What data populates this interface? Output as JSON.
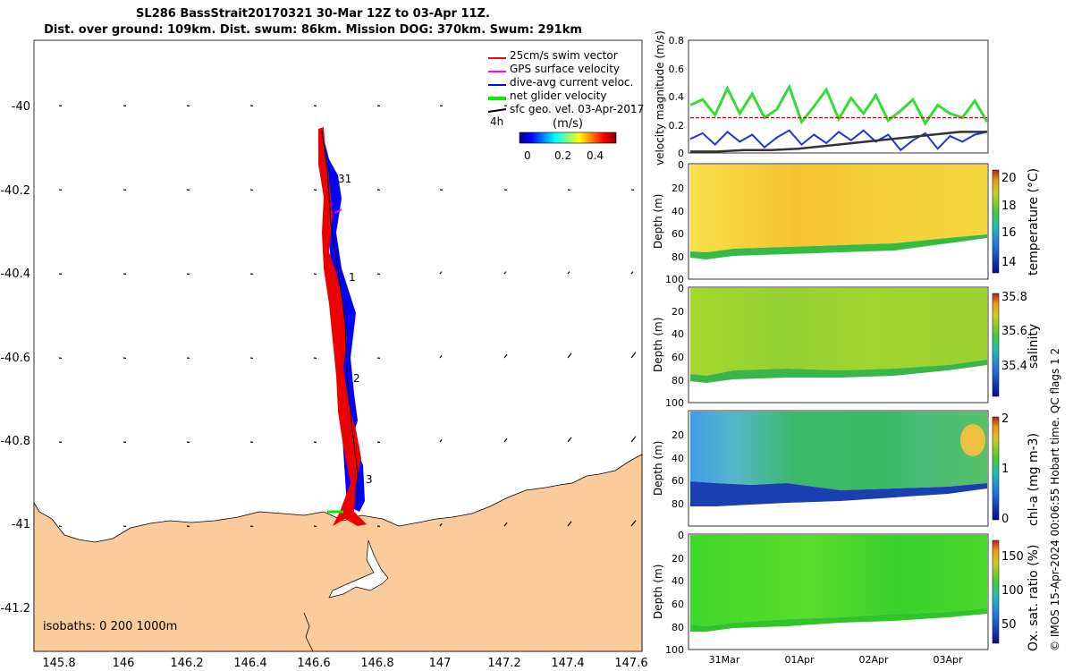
{
  "titles": {
    "line1": "SL286 BassStrait20170321 30-Mar 12Z to 03-Apr 11Z.",
    "line2": "Dist. over ground: 109km. Dist. swum: 86km. Mission DOG: 370km. Swum: 291km"
  },
  "footer": "© IMOS 15-Apr-2024 00:06:55 Hobart time. QC flags 1  2",
  "map": {
    "x_ticks": [
      "145.8",
      "146",
      "146.2",
      "146.4",
      "146.6",
      "146.8",
      "147",
      "147.2",
      "147.4",
      "147.6"
    ],
    "y_ticks": [
      "-40",
      "-40.2",
      "-40.4",
      "-40.6",
      "-40.8",
      "-41",
      "-41.2"
    ],
    "legend": [
      {
        "label": "25cm/s swim vector",
        "color": "#ff0000"
      },
      {
        "label": "GPS surface velocity",
        "color": "#ff00ff"
      },
      {
        "label": "dive-avg current veloc.",
        "color": "#0000ff"
      },
      {
        "label": "net glider velocity",
        "color": "#00ff00"
      },
      {
        "label": "sfc geo. vel. 03-Apr-2017",
        "color": "#000000"
      }
    ],
    "colorbar_label": "(m/s)",
    "colorbar_ticks": [
      "0",
      "0.2",
      "0.4"
    ],
    "time_label": "4h",
    "day_labels": [
      "31",
      "1",
      "2",
      "3"
    ],
    "isobaths_text": "isobaths: 0   200  1000m",
    "land_color": "#fbcb9b"
  },
  "chart_data": [
    {
      "type": "line",
      "ylabel": "velocity magnitude (m/s)",
      "ylim": [
        0,
        0.8
      ],
      "y_ticks": [
        "0",
        "0.2",
        "0.4",
        "0.6",
        "0.8"
      ],
      "series": [
        {
          "name": "net glider velocity",
          "color": "#33dd33",
          "values": [
            0.34,
            0.38,
            0.27,
            0.46,
            0.28,
            0.42,
            0.25,
            0.31,
            0.47,
            0.22,
            0.33,
            0.45,
            0.24,
            0.39,
            0.28,
            0.41,
            0.23,
            0.3,
            0.38,
            0.21,
            0.34,
            0.28,
            0.25,
            0.37,
            0.22
          ]
        },
        {
          "name": "dive-avg current veloc.",
          "color": "#2233dd",
          "values": [
            0.1,
            0.14,
            0.06,
            0.15,
            0.08,
            0.13,
            0.04,
            0.11,
            0.16,
            0.06,
            0.13,
            0.07,
            0.15,
            0.09,
            0.16,
            0.08,
            0.13,
            0.02,
            0.09,
            0.14,
            0.03,
            0.12,
            0.08,
            0.13,
            0.15
          ]
        },
        {
          "name": "25cm/s swim vector",
          "color": "#ee0000",
          "values": [
            0.25,
            0.25
          ]
        },
        {
          "name": "sfc geo. vel.",
          "color": "#333333",
          "values": [
            0.01,
            0.01,
            0.02,
            0.02,
            0.03,
            0.05,
            0.07,
            0.09,
            0.11,
            0.13,
            0.15,
            0.15
          ]
        }
      ]
    },
    {
      "type": "heatmap",
      "variable": "temperature",
      "ylabel": "Depth (m)",
      "y_ticks": [
        "0",
        "20",
        "40",
        "60",
        "80",
        "100"
      ],
      "cbar_label": "temperature (°C)",
      "cbar_ticks": [
        "20",
        "18",
        "16",
        "14"
      ],
      "cbar_range": [
        13,
        20.5
      ],
      "bottom_depth": [
        82,
        79,
        84,
        80,
        77,
        81,
        78,
        75,
        78,
        74,
        76,
        72,
        74,
        70,
        72,
        68,
        70,
        66
      ]
    },
    {
      "type": "heatmap",
      "variable": "salinity",
      "ylabel": "Depth (m)",
      "y_ticks": [
        "0",
        "20",
        "40",
        "60",
        "80",
        "100"
      ],
      "cbar_label": "salinity",
      "cbar_ticks": [
        "35.8",
        "35.6",
        "35.4"
      ],
      "cbar_range": [
        35.25,
        35.85
      ]
    },
    {
      "type": "heatmap",
      "variable": "chl-a",
      "ylabel": "Depth (m)",
      "y_ticks": [
        "20",
        "40",
        "60",
        "80"
      ],
      "cbar_label": "chl-a (mg m-3)",
      "cbar_ticks": [
        "2",
        "1",
        "0"
      ],
      "cbar_range": [
        0,
        2
      ]
    },
    {
      "type": "heatmap",
      "variable": "oxygen saturation",
      "ylabel": "Depth (m)",
      "y_ticks": [
        "0",
        "20",
        "40",
        "60",
        "80",
        "100"
      ],
      "x_ticks": [
        "31Mar",
        "01Apr",
        "02Apr",
        "03Apr"
      ],
      "cbar_label": "Ox. sat. ratio (%)",
      "cbar_ticks": [
        "150",
        "100",
        "50"
      ],
      "cbar_range": [
        20,
        175
      ]
    }
  ]
}
